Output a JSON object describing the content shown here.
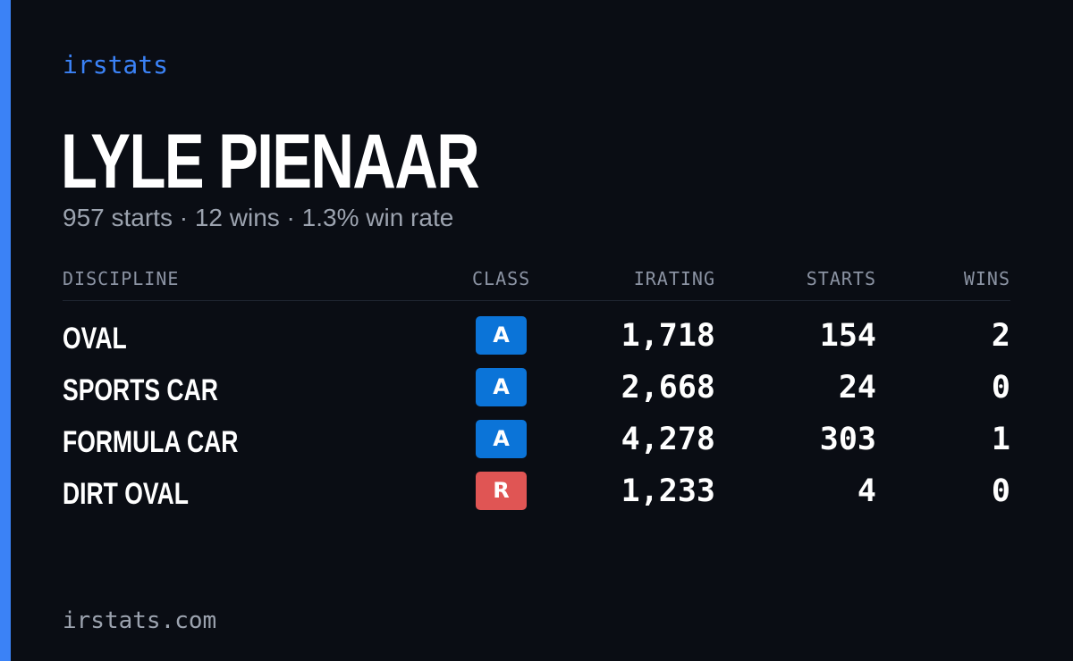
{
  "brand": "irstats",
  "driver": {
    "name": "LYLE PIENAAR",
    "summary": "957 starts · 12 wins · 1.3% win rate"
  },
  "table": {
    "headers": {
      "discipline": "DISCIPLINE",
      "class": "CLASS",
      "irating": "IRATING",
      "starts": "STARTS",
      "wins": "WINS"
    },
    "rows": [
      {
        "discipline": "OVAL",
        "class": "A",
        "class_color": "#0b74d8",
        "irating": "1,718",
        "starts": "154",
        "wins": "2"
      },
      {
        "discipline": "SPORTS CAR",
        "class": "A",
        "class_color": "#0b74d8",
        "irating": "2,668",
        "starts": "24",
        "wins": "0"
      },
      {
        "discipline": "FORMULA CAR",
        "class": "A",
        "class_color": "#0b74d8",
        "irating": "4,278",
        "starts": "303",
        "wins": "1"
      },
      {
        "discipline": "DIRT OVAL",
        "class": "R",
        "class_color": "#e05554",
        "irating": "1,233",
        "starts": "4",
        "wins": "0"
      }
    ]
  },
  "footer": "irstats.com",
  "colors": {
    "background": "#0a0d14",
    "accent": "#3b82f6"
  }
}
